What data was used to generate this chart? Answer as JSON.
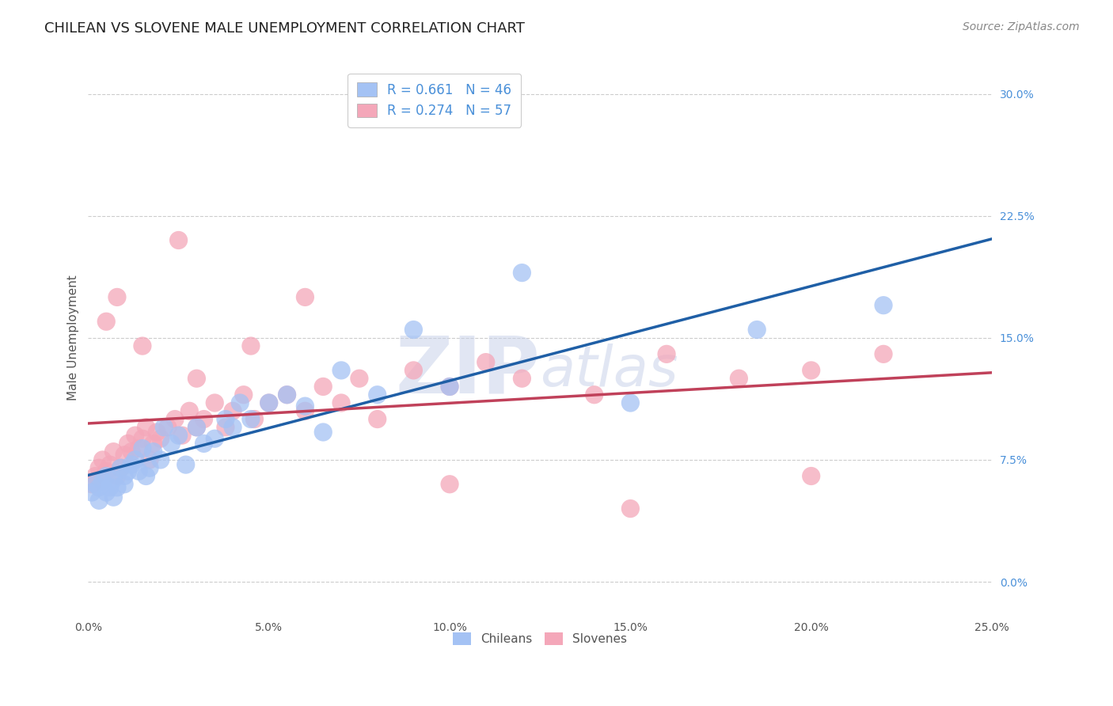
{
  "title": "CHILEAN VS SLOVENE MALE UNEMPLOYMENT CORRELATION CHART",
  "source": "Source: ZipAtlas.com",
  "ylabel": "Male Unemployment",
  "xlim": [
    0.0,
    0.25
  ],
  "ylim": [
    -0.02,
    0.32
  ],
  "legend_entries": [
    {
      "label_r": "R = 0.661",
      "label_n": "N = 46",
      "color": "#a4c2f4"
    },
    {
      "label_r": "R = 0.274",
      "label_n": "N = 57",
      "color": "#f4a7b9"
    }
  ],
  "chileans_x": [
    0.001,
    0.002,
    0.003,
    0.003,
    0.004,
    0.005,
    0.005,
    0.006,
    0.007,
    0.007,
    0.008,
    0.009,
    0.01,
    0.01,
    0.011,
    0.012,
    0.013,
    0.014,
    0.015,
    0.016,
    0.017,
    0.018,
    0.02,
    0.021,
    0.023,
    0.025,
    0.027,
    0.03,
    0.032,
    0.035,
    0.038,
    0.04,
    0.042,
    0.045,
    0.05,
    0.055,
    0.06,
    0.065,
    0.07,
    0.08,
    0.09,
    0.1,
    0.12,
    0.15,
    0.185,
    0.22
  ],
  "chileans_y": [
    0.055,
    0.06,
    0.05,
    0.058,
    0.062,
    0.055,
    0.065,
    0.058,
    0.052,
    0.063,
    0.058,
    0.07,
    0.065,
    0.06,
    0.068,
    0.072,
    0.075,
    0.068,
    0.082,
    0.065,
    0.07,
    0.08,
    0.075,
    0.095,
    0.085,
    0.09,
    0.072,
    0.095,
    0.085,
    0.088,
    0.1,
    0.095,
    0.11,
    0.1,
    0.11,
    0.115,
    0.108,
    0.092,
    0.13,
    0.115,
    0.155,
    0.12,
    0.19,
    0.11,
    0.155,
    0.17
  ],
  "slovenes_x": [
    0.001,
    0.002,
    0.003,
    0.004,
    0.005,
    0.006,
    0.007,
    0.008,
    0.009,
    0.01,
    0.011,
    0.012,
    0.013,
    0.014,
    0.015,
    0.016,
    0.017,
    0.018,
    0.019,
    0.02,
    0.022,
    0.024,
    0.026,
    0.028,
    0.03,
    0.032,
    0.035,
    0.038,
    0.04,
    0.043,
    0.046,
    0.05,
    0.055,
    0.06,
    0.065,
    0.07,
    0.075,
    0.08,
    0.09,
    0.1,
    0.11,
    0.12,
    0.14,
    0.16,
    0.18,
    0.2,
    0.22,
    0.008,
    0.015,
    0.03,
    0.045,
    0.06,
    0.1,
    0.15,
    0.2,
    0.005,
    0.025
  ],
  "slovenes_y": [
    0.06,
    0.065,
    0.07,
    0.075,
    0.068,
    0.072,
    0.08,
    0.065,
    0.07,
    0.078,
    0.085,
    0.08,
    0.09,
    0.082,
    0.088,
    0.095,
    0.075,
    0.085,
    0.092,
    0.088,
    0.095,
    0.1,
    0.09,
    0.105,
    0.095,
    0.1,
    0.11,
    0.095,
    0.105,
    0.115,
    0.1,
    0.11,
    0.115,
    0.105,
    0.12,
    0.11,
    0.125,
    0.1,
    0.13,
    0.12,
    0.135,
    0.125,
    0.115,
    0.14,
    0.125,
    0.13,
    0.14,
    0.175,
    0.145,
    0.125,
    0.145,
    0.175,
    0.06,
    0.045,
    0.065,
    0.16,
    0.21
  ],
  "blue_line_color": "#1f5fa6",
  "pink_line_color": "#c0415a",
  "blue_scatter_color": "#a4c2f4",
  "pink_scatter_color": "#f4a7b9",
  "background_color": "#ffffff",
  "grid_color": "#cccccc",
  "watermark_zip": "ZIP",
  "watermark_atlas": "atlas",
  "watermark_color_zip": "#c5cfe8",
  "watermark_color_atlas": "#c5cfe8",
  "title_fontsize": 13,
  "axis_label_fontsize": 11,
  "tick_fontsize": 10,
  "source_fontsize": 10,
  "yticks": [
    0.0,
    0.075,
    0.15,
    0.225,
    0.3
  ],
  "xticks": [
    0.0,
    0.05,
    0.1,
    0.15,
    0.2,
    0.25
  ]
}
